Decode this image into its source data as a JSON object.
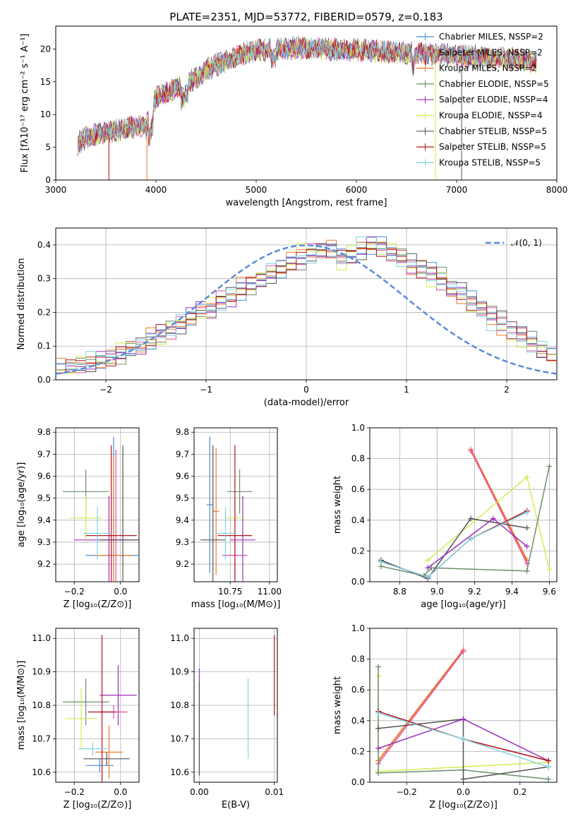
{
  "title": "PLATE=2351, MJD=53772, FIBERID=0579, z=0.183",
  "colors": [
    "#4a8bd0",
    "#e34fa4",
    "#f07b2c",
    "#6b8e6b",
    "#9b2fbc",
    "#d4ea52",
    "#555555",
    "#b5121b",
    "#7fd3df"
  ],
  "chart_data": [
    {
      "type": "line",
      "panel": "spectrum",
      "xlabel": "wavelength [Angstrom, rest frame]",
      "ylabel": "Flux [f$_\\lambda$10$^{-17}$ erg cm$^{-2}$ s$^{-1}$ A$^{-1}$]",
      "ylabel_text": "Flux [fλ10⁻¹⁷ erg cm⁻² s⁻¹ A⁻¹]",
      "xlim": [
        3000,
        8000
      ],
      "ylim": [
        0,
        23.5
      ],
      "xticks": [
        "3000",
        "4000",
        "5000",
        "6000",
        "7000",
        "8000"
      ],
      "yticks": [
        "0",
        "5",
        "10",
        "15",
        "20"
      ],
      "legend_placement": "right",
      "legend": [
        "Chabrier MILES, N$_{SSP}$=2",
        "Salpeter MILES, N$_{SSP}$=2",
        "Kroupa MILES, N$_{SSP}$=2",
        "Chabrier ELODIE, N$_{SSP}$=5",
        "Salpeter ELODIE, N$_{SSP}$=4",
        "Kroupa ELODIE, N$_{SSP}$=4",
        "Chabrier STELIB, N$_{SSP}$=5",
        "Salpeter STELIB, N$_{SSP}$=5",
        "Kroupa STELIB, N$_{SSP}$=5"
      ],
      "legend_text": [
        "Chabrier MILES, NSSP=2",
        "Salpeter MILES, NSSP=2",
        "Kroupa MILES, NSSP=2",
        "Chabrier ELODIE, NSSP=5",
        "Salpeter ELODIE, NSSP=4",
        "Kroupa ELODIE, NSSP=4",
        "Chabrier STELIB, NSSP=5",
        "Salpeter STELIB, NSSP=5",
        "Kroupa STELIB, NSSP=5"
      ],
      "continuum": {
        "x": [
          3220,
          3300,
          3400,
          3500,
          3600,
          3700,
          3800,
          3900,
          3950,
          4000,
          4100,
          4200,
          4300,
          4400,
          4500,
          4600,
          4700,
          4800,
          4900,
          5000,
          5200,
          5400,
          5600,
          5800,
          6000,
          6200,
          6400,
          6600,
          6800,
          7000,
          7200,
          7400,
          7600,
          7800
        ],
        "y": [
          5.5,
          6.5,
          7.0,
          7.2,
          7.5,
          7.8,
          8.3,
          8.0,
          10.5,
          12.5,
          13.3,
          14.0,
          14.8,
          15.5,
          16.8,
          17.6,
          18.2,
          18.8,
          19.4,
          19.8,
          20.0,
          20.2,
          20.1,
          19.9,
          19.8,
          19.7,
          19.5,
          19.3,
          19.2,
          19.0,
          18.8,
          18.6,
          18.4,
          18.0
        ]
      }
    },
    {
      "type": "bar",
      "panel": "residual histogram",
      "xlabel": "(data-model)/error",
      "ylabel": "Normed distribution",
      "xlim": [
        -2.5,
        2.5
      ],
      "ylim": [
        0,
        0.45
      ],
      "xticks": [
        "−2",
        "−1",
        "0",
        "1",
        "2"
      ],
      "yticks": [
        "0.0",
        "0.1",
        "0.2",
        "0.3",
        "0.4"
      ],
      "reference_label": "$\\mathcal{N}(0,1)$",
      "reference_label_text": "𝒩(0, 1)",
      "bin_width": 0.1,
      "bins_start": -2.5,
      "series_values": [
        [
          0.035,
          0.03,
          0.04,
          0.048,
          0.052,
          0.06,
          0.07,
          0.09,
          0.1,
          0.115,
          0.13,
          0.15,
          0.16,
          0.18,
          0.2,
          0.21,
          0.23,
          0.25,
          0.26,
          0.27,
          0.29,
          0.31,
          0.32,
          0.34,
          0.35,
          0.37,
          0.38,
          0.39,
          0.37,
          0.36,
          0.38,
          0.39,
          0.4,
          0.38,
          0.37,
          0.35,
          0.34,
          0.33,
          0.31,
          0.28,
          0.27,
          0.24,
          0.22,
          0.2,
          0.18,
          0.16,
          0.14,
          0.12,
          0.09,
          0.075
        ],
        [
          0.03,
          0.035,
          0.045,
          0.05,
          0.06,
          0.065,
          0.08,
          0.09,
          0.1,
          0.12,
          0.14,
          0.145,
          0.17,
          0.19,
          0.22,
          0.2,
          0.24,
          0.24,
          0.27,
          0.28,
          0.3,
          0.32,
          0.33,
          0.35,
          0.36,
          0.38,
          0.39,
          0.38,
          0.36,
          0.37,
          0.39,
          0.4,
          0.39,
          0.37,
          0.36,
          0.34,
          0.32,
          0.31,
          0.29,
          0.27,
          0.25,
          0.23,
          0.21,
          0.19,
          0.17,
          0.14,
          0.13,
          0.11,
          0.085,
          0.07
        ],
        [
          0.04,
          0.04,
          0.05,
          0.06,
          0.06,
          0.07,
          0.085,
          0.1,
          0.1,
          0.13,
          0.13,
          0.15,
          0.17,
          0.19,
          0.2,
          0.22,
          0.23,
          0.25,
          0.28,
          0.29,
          0.3,
          0.32,
          0.34,
          0.36,
          0.38,
          0.37,
          0.38,
          0.39,
          0.35,
          0.38,
          0.4,
          0.41,
          0.39,
          0.38,
          0.36,
          0.33,
          0.33,
          0.3,
          0.3,
          0.26,
          0.25,
          0.22,
          0.2,
          0.17,
          0.15,
          0.13,
          0.12,
          0.1,
          0.09,
          0.08
        ]
      ],
      "normal_curve": true,
      "grid": true
    },
    {
      "type": "scatter",
      "panel": "age vs Z",
      "xlabel": "Z [log$_{10}$(Z/Z$_\\odot$)]",
      "xlabel_text": "Z [log₁₀(Z/Z⊙)]",
      "ylabel_text": "age  [log₁₀(age/yr)]",
      "xlim": [
        -0.28,
        0.08
      ],
      "ylim": [
        9.12,
        9.82
      ],
      "xticks": [
        "−0.2",
        "0.0"
      ],
      "yticks": [
        "9.2",
        "9.3",
        "9.4",
        "9.5",
        "9.6",
        "9.7",
        "9.8"
      ],
      "errorbars": [
        {
          "x": -0.03,
          "y": 9.24,
          "xerr": 0.12,
          "yerr": 0.54,
          "c": 0
        },
        {
          "x": -0.02,
          "y": 9.31,
          "xerr": 0.05,
          "yerr": 0.41,
          "c": 1
        },
        {
          "x": -0.03,
          "y": 9.24,
          "xerr": 0.08,
          "yerr": 0.45,
          "c": 2
        },
        {
          "x": -0.15,
          "y": 9.53,
          "xerr": 0.1,
          "yerr": 0.1,
          "c": 3
        },
        {
          "x": -0.05,
          "y": 9.31,
          "xerr": 0.15,
          "yerr": 0.2,
          "c": 4
        },
        {
          "x": -0.15,
          "y": 9.41,
          "xerr": 0.07,
          "yerr": 0.1,
          "c": 5
        },
        {
          "x": 0.01,
          "y": 9.31,
          "xerr": 0.1,
          "yerr": 0.43,
          "c": 6
        },
        {
          "x": -0.04,
          "y": 9.33,
          "xerr": 0.11,
          "yerr": 0.41,
          "c": 7
        },
        {
          "x": -0.1,
          "y": 9.34,
          "xerr": 0.06,
          "yerr": 0.12,
          "c": 8
        }
      ]
    },
    {
      "type": "scatter",
      "panel": "age vs mass",
      "xlabel_text": "mass [log₁₀(M/M⊙)]",
      "xlim": [
        10.52,
        11.05
      ],
      "ylim": [
        9.12,
        9.82
      ],
      "xticks": [
        "10.75",
        "11.00"
      ],
      "yticks": [
        "9.2",
        "9.3",
        "9.4",
        "9.5",
        "9.6",
        "9.7",
        "9.8"
      ],
      "errorbars": [
        {
          "x": 10.62,
          "y": 9.47,
          "xerr": 0.02,
          "yerr": 0.31,
          "c": 0
        },
        {
          "x": 10.78,
          "y": 9.24,
          "xerr": 0.08,
          "yerr": 0.08,
          "c": 1
        },
        {
          "x": 10.66,
          "y": 9.44,
          "xerr": 0.02,
          "yerr": 0.29,
          "c": 2
        },
        {
          "x": 10.81,
          "y": 9.53,
          "xerr": 0.08,
          "yerr": 0.1,
          "c": 3
        },
        {
          "x": 10.83,
          "y": 9.31,
          "xerr": 0.08,
          "yerr": 0.2,
          "c": 4
        },
        {
          "x": 10.78,
          "y": 9.41,
          "xerr": 0.06,
          "yerr": 0.1,
          "c": 5
        },
        {
          "x": 10.64,
          "y": 9.31,
          "xerr": 0.08,
          "yerr": 0.43,
          "c": 6
        },
        {
          "x": 10.78,
          "y": 9.33,
          "xerr": 0.11,
          "yerr": 0.41,
          "c": 7
        },
        {
          "x": 10.72,
          "y": 9.34,
          "xerr": 0.06,
          "yerr": 0.12,
          "c": 8
        }
      ]
    },
    {
      "type": "line",
      "panel": "mass weight vs age",
      "xlabel_text": "age  [log₁₀(age/yr)]",
      "ylabel": "mass weight",
      "xlim": [
        8.64,
        9.64
      ],
      "ylim": [
        0,
        1.0
      ],
      "xticks": [
        "8.8",
        "9.0",
        "9.2",
        "9.4",
        "9.6"
      ],
      "yticks": [
        "0.0",
        "0.2",
        "0.4",
        "0.6",
        "0.8",
        "1.0"
      ],
      "series": [
        {
          "x": [
            9.18,
            9.48
          ],
          "y": [
            0.86,
            0.14
          ],
          "c": 2
        },
        {
          "x": [
            9.18,
            9.48
          ],
          "y": [
            0.85,
            0.12
          ],
          "c": 1
        },
        {
          "x": [
            8.95,
            9.48,
            9.6
          ],
          "y": [
            0.14,
            0.68,
            0.08
          ],
          "c": 5
        },
        {
          "x": [
            8.7,
            8.93,
            8.97,
            9.48,
            9.6
          ],
          "y": [
            0.1,
            0.04,
            0.09,
            0.07,
            0.75
          ],
          "c": 3
        },
        {
          "x": [
            8.7,
            8.95,
            9.18,
            9.48
          ],
          "y": [
            0.14,
            0.02,
            0.41,
            0.35
          ],
          "c": 6
        },
        {
          "x": [
            8.95,
            9.3,
            9.48
          ],
          "y": [
            0.09,
            0.41,
            0.23
          ],
          "c": 4
        },
        {
          "x": [
            8.7,
            8.95,
            9.18,
            9.48
          ],
          "y": [
            0.13,
            0.03,
            0.28,
            0.46
          ],
          "c": 7
        },
        {
          "x": [
            8.7,
            8.95,
            9.18,
            9.48
          ],
          "y": [
            0.13,
            0.03,
            0.28,
            0.45
          ],
          "c": 8
        }
      ],
      "grid": true
    },
    {
      "type": "scatter",
      "panel": "mass vs Z",
      "xlabel_text": "Z [log₁₀(Z/Z⊙)]",
      "ylabel_text": "mass [log₁₀(M/M⊙)]",
      "xlim": [
        -0.28,
        0.08
      ],
      "ylim": [
        10.57,
        11.03
      ],
      "xticks": [
        "−0.2",
        "0.0"
      ],
      "yticks": [
        "10.6",
        "10.7",
        "10.8",
        "10.9",
        "11.0"
      ],
      "errorbars": [
        {
          "x": -0.09,
          "y": 10.62,
          "xerr": 0.06,
          "yerr": 0.02,
          "c": 0
        },
        {
          "x": -0.03,
          "y": 10.78,
          "xerr": 0.06,
          "yerr": 0.02,
          "c": 1
        },
        {
          "x": -0.05,
          "y": 10.66,
          "xerr": 0.06,
          "yerr": 0.08,
          "c": 2
        },
        {
          "x": -0.15,
          "y": 10.81,
          "xerr": 0.1,
          "yerr": 0.07,
          "c": 3
        },
        {
          "x": -0.01,
          "y": 10.83,
          "xerr": 0.08,
          "yerr": 0.09,
          "c": 4
        },
        {
          "x": -0.17,
          "y": 10.76,
          "xerr": 0.07,
          "yerr": 0.09,
          "c": 5
        },
        {
          "x": -0.06,
          "y": 10.64,
          "xerr": 0.1,
          "yerr": 0.02,
          "c": 6
        },
        {
          "x": -0.08,
          "y": 10.78,
          "xerr": 0.06,
          "yerr": 0.23,
          "c": 7
        },
        {
          "x": -0.12,
          "y": 10.67,
          "xerr": 0.06,
          "yerr": 0.02,
          "c": 8
        }
      ]
    },
    {
      "type": "scatter",
      "panel": "mass vs E(B-V)",
      "xlabel": "E(B-V)",
      "xlim": [
        -0.0007,
        0.0104
      ],
      "ylim": [
        10.57,
        11.03
      ],
      "xticks": [
        "0.00",
        "0.01"
      ],
      "yticks": [
        "10.6",
        "10.7",
        "10.8",
        "10.9",
        "11.0"
      ],
      "errorbars": [
        {
          "x": 0.0,
          "y": 10.75,
          "xerr": 0,
          "yerr": 0.16,
          "c": 4
        },
        {
          "x": 0.0,
          "y": 10.73,
          "xerr": 0,
          "yerr": 0.14,
          "c": 6
        },
        {
          "x": 0.0065,
          "y": 10.76,
          "xerr": 0,
          "yerr": 0.12,
          "c": 8
        },
        {
          "x": 0.01,
          "y": 10.89,
          "xerr": 0,
          "yerr": 0.12,
          "c": 7
        }
      ]
    },
    {
      "type": "line",
      "panel": "mass weight vs Z",
      "xlabel_text": "Z [log₁₀(Z/Z⊙)]",
      "ylabel": "mass weight",
      "xlim": [
        -0.33,
        0.33
      ],
      "ylim": [
        0,
        1.0
      ],
      "xticks": [
        "−0.2",
        "0.0",
        "0.2"
      ],
      "yticks": [
        "0.0",
        "0.2",
        "0.4",
        "0.6",
        "0.8",
        "1.0"
      ],
      "series": [
        {
          "x": [
            -0.3,
            0.0
          ],
          "y": [
            0.14,
            0.86
          ],
          "c": 2
        },
        {
          "x": [
            -0.3,
            0.0
          ],
          "y": [
            0.12,
            0.85
          ],
          "c": 1
        },
        {
          "x": [
            -0.3,
            -0.3,
            0.3
          ],
          "y": [
            0.69,
            0.07,
            0.13
          ],
          "c": 5
        },
        {
          "x": [
            -0.3,
            -0.3,
            0.0,
            0.3
          ],
          "y": [
            0.75,
            0.06,
            0.08,
            0.02
          ],
          "c": 3
        },
        {
          "x": [
            -0.3,
            0.0,
            0.0,
            0.3
          ],
          "y": [
            0.35,
            0.41,
            0.02,
            0.1
          ],
          "c": 6
        },
        {
          "x": [
            -0.3,
            0.0,
            0.3
          ],
          "y": [
            0.22,
            0.41,
            0.14
          ],
          "c": 4
        },
        {
          "x": [
            -0.3,
            0.0,
            0.3
          ],
          "y": [
            0.46,
            0.28,
            0.14
          ],
          "c": 7
        },
        {
          "x": [
            -0.3,
            0.0,
            0.3
          ],
          "y": [
            0.45,
            0.28,
            0.1
          ],
          "c": 8
        }
      ],
      "grid": true
    }
  ]
}
